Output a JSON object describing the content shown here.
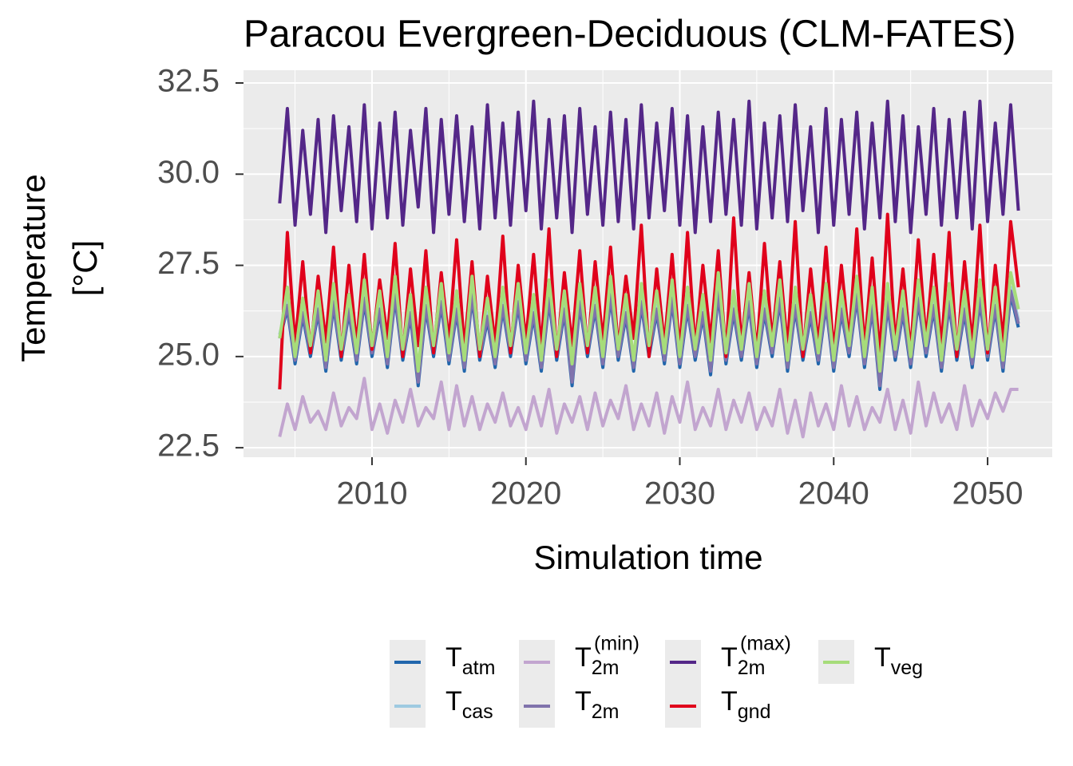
{
  "chart_data": {
    "type": "line",
    "title": "Paracou Evergreen-Deciduous (CLM-FATES)",
    "xlabel": "Simulation time",
    "ylabel": [
      "Temperature",
      "[°C]"
    ],
    "xlim": [
      2001.65,
      2054.2
    ],
    "ylim": [
      22.24,
      32.85
    ],
    "xticks": [
      2010,
      2020,
      2030,
      2040,
      2050
    ],
    "yticks": [
      {
        "value": 22.5,
        "label": "22.5"
      },
      {
        "value": 25,
        "label": "25.0"
      },
      {
        "value": 27.5,
        "label": "27.5"
      },
      {
        "value": 30,
        "label": "30.0"
      },
      {
        "value": 32.5,
        "label": "32.5"
      }
    ],
    "grid": true,
    "legend": "bottom",
    "x": [
      2004.0,
      2004.5,
      2005.0,
      2005.5,
      2006.0,
      2006.5,
      2007.0,
      2007.5,
      2008.0,
      2008.5,
      2009.0,
      2009.5,
      2010.0,
      2010.5,
      2011.0,
      2011.5,
      2012.0,
      2012.5,
      2013.0,
      2013.5,
      2014.0,
      2014.5,
      2015.0,
      2015.5,
      2016.0,
      2016.5,
      2017.0,
      2017.5,
      2018.0,
      2018.5,
      2019.0,
      2019.5,
      2020.0,
      2020.5,
      2021.0,
      2021.5,
      2022.0,
      2022.5,
      2023.0,
      2023.5,
      2024.0,
      2024.5,
      2025.0,
      2025.5,
      2026.0,
      2026.5,
      2027.0,
      2027.5,
      2028.0,
      2028.5,
      2029.0,
      2029.5,
      2030.0,
      2030.5,
      2031.0,
      2031.5,
      2032.0,
      2032.5,
      2033.0,
      2033.5,
      2034.0,
      2034.5,
      2035.0,
      2035.5,
      2036.0,
      2036.5,
      2037.0,
      2037.5,
      2038.0,
      2038.5,
      2039.0,
      2039.5,
      2040.0,
      2040.5,
      2041.0,
      2041.5,
      2042.0,
      2042.5,
      2043.0,
      2043.5,
      2044.0,
      2044.5,
      2045.0,
      2045.5,
      2046.0,
      2046.5,
      2047.0,
      2047.5,
      2048.0,
      2048.5,
      2049.0,
      2049.5,
      2050.0,
      2050.5,
      2051.0,
      2051.5,
      2052.0
    ],
    "series": [
      {
        "name": "T",
        "subscript": "atm",
        "color": "#2166ac",
        "values": [
          25.5,
          26.3,
          24.8,
          26.1,
          25.0,
          26.2,
          24.6,
          26.4,
          24.9,
          26.2,
          24.8,
          26.5,
          25.0,
          26.2,
          24.7,
          26.6,
          24.9,
          26.1,
          24.2,
          26.3,
          25.0,
          26.4,
          24.8,
          26.2,
          24.6,
          26.6,
          24.9,
          26.0,
          24.7,
          26.3,
          25.0,
          26.4,
          24.8,
          26.1,
          24.6,
          26.5,
          24.9,
          26.2,
          24.2,
          26.4,
          25.0,
          26.3,
          24.7,
          26.6,
          24.9,
          26.1,
          24.6,
          26.4,
          25.0,
          26.2,
          24.8,
          26.5,
          24.7,
          26.3,
          24.9,
          26.1,
          24.5,
          26.7,
          24.8,
          26.2,
          24.9,
          26.4,
          24.7,
          26.2,
          25.0,
          26.5,
          24.6,
          26.3,
          24.9,
          26.1,
          24.8,
          26.4,
          24.6,
          26.2,
          25.0,
          26.6,
          24.7,
          26.3,
          24.1,
          26.4,
          24.9,
          26.2,
          24.7,
          26.5,
          25.0,
          26.3,
          24.6,
          26.4,
          24.9,
          26.2,
          24.7,
          26.5,
          24.9,
          26.3,
          24.6,
          26.7,
          25.8
        ]
      },
      {
        "name": "T",
        "subscript": "cas",
        "color": "#9ecae1",
        "values": [
          25.6,
          26.5,
          25.0,
          26.3,
          25.2,
          26.4,
          24.8,
          26.6,
          25.1,
          26.4,
          25.0,
          26.7,
          25.2,
          26.4,
          24.9,
          26.8,
          25.1,
          26.3,
          24.4,
          26.5,
          25.2,
          26.6,
          25.0,
          26.4,
          24.8,
          26.8,
          25.1,
          26.2,
          24.9,
          26.5,
          25.2,
          26.6,
          25.0,
          26.3,
          24.8,
          26.7,
          25.1,
          26.4,
          24.4,
          26.6,
          25.2,
          26.5,
          24.9,
          26.8,
          25.1,
          26.3,
          24.8,
          26.6,
          25.2,
          26.4,
          25.0,
          26.7,
          24.9,
          26.5,
          25.1,
          26.3,
          24.7,
          26.9,
          25.0,
          26.4,
          25.1,
          26.6,
          24.9,
          26.4,
          25.2,
          26.7,
          24.8,
          26.5,
          25.1,
          26.3,
          25.0,
          26.6,
          24.8,
          26.4,
          25.2,
          26.8,
          24.9,
          26.5,
          24.3,
          26.6,
          25.1,
          26.4,
          24.9,
          26.7,
          25.2,
          26.5,
          24.8,
          26.6,
          25.1,
          26.4,
          24.9,
          26.7,
          25.1,
          26.5,
          24.8,
          26.9,
          26.0
        ]
      },
      {
        "name": "T",
        "subscript": "2m",
        "superscript": "(min)",
        "color": "#c2a5cf",
        "values": [
          22.8,
          23.7,
          23.0,
          23.9,
          23.2,
          23.5,
          23.0,
          24.0,
          23.1,
          23.6,
          23.3,
          24.4,
          23.0,
          23.7,
          22.9,
          23.8,
          23.2,
          24.1,
          23.1,
          23.6,
          23.3,
          24.3,
          23.0,
          24.2,
          23.1,
          23.9,
          23.0,
          23.7,
          23.2,
          24.0,
          23.1,
          23.6,
          23.0,
          23.9,
          23.1,
          24.1,
          22.9,
          23.7,
          23.2,
          23.9,
          23.0,
          24.0,
          23.1,
          23.8,
          23.3,
          24.2,
          23.0,
          23.7,
          23.1,
          24.0,
          22.9,
          23.9,
          23.2,
          24.3,
          23.0,
          23.6,
          23.1,
          24.1,
          23.0,
          23.8,
          23.2,
          24.0,
          23.0,
          23.6,
          23.1,
          24.1,
          22.9,
          23.8,
          22.8,
          24.0,
          23.1,
          23.7,
          23.0,
          24.2,
          23.1,
          23.9,
          23.0,
          23.6,
          23.2,
          24.1,
          23.0,
          23.8,
          22.9,
          24.3,
          23.1,
          24.0,
          23.2,
          23.7,
          23.0,
          24.2,
          23.1,
          23.8,
          23.3,
          24.0,
          23.5,
          24.1,
          24.1
        ]
      },
      {
        "name": "T",
        "subscript": "2m",
        "color": "#8073ac",
        "values": [
          25.5,
          26.4,
          24.9,
          26.2,
          25.1,
          26.3,
          24.7,
          26.5,
          25.0,
          26.3,
          24.9,
          26.6,
          25.1,
          26.3,
          24.8,
          26.7,
          25.0,
          26.2,
          24.3,
          26.4,
          25.1,
          26.5,
          24.9,
          26.3,
          24.7,
          26.7,
          25.0,
          26.1,
          24.8,
          26.4,
          25.1,
          26.5,
          24.9,
          26.2,
          24.7,
          26.6,
          25.0,
          26.3,
          24.3,
          26.5,
          25.1,
          26.4,
          24.8,
          26.7,
          25.0,
          26.2,
          24.7,
          26.5,
          25.1,
          26.3,
          24.9,
          26.6,
          24.8,
          26.4,
          25.0,
          26.2,
          24.6,
          26.8,
          24.9,
          26.3,
          25.0,
          26.5,
          24.8,
          26.3,
          25.1,
          26.6,
          24.7,
          26.4,
          25.0,
          26.2,
          24.9,
          26.5,
          24.7,
          26.3,
          25.1,
          26.7,
          24.8,
          26.4,
          24.2,
          26.5,
          25.0,
          26.3,
          24.8,
          26.6,
          25.1,
          26.4,
          24.7,
          26.5,
          25.0,
          26.3,
          24.8,
          26.6,
          25.0,
          26.4,
          24.7,
          26.8,
          25.9
        ]
      },
      {
        "name": "T",
        "subscript": "2m",
        "superscript": "(max)",
        "color": "#542788",
        "values": [
          29.2,
          31.8,
          28.6,
          31.2,
          28.9,
          31.5,
          28.4,
          31.6,
          29.0,
          31.3,
          28.7,
          31.9,
          28.5,
          31.4,
          28.8,
          31.7,
          28.6,
          31.2,
          29.1,
          31.8,
          28.4,
          31.5,
          28.9,
          31.6,
          28.7,
          31.3,
          28.5,
          31.9,
          28.8,
          31.4,
          28.6,
          31.7,
          29.0,
          32.0,
          28.5,
          31.5,
          28.8,
          31.6,
          28.4,
          31.8,
          28.9,
          31.3,
          28.6,
          31.7,
          28.7,
          31.5,
          28.5,
          31.9,
          28.8,
          31.4,
          29.0,
          31.8,
          28.6,
          31.6,
          28.4,
          31.3,
          28.7,
          31.7,
          28.9,
          31.5,
          28.6,
          32.0,
          28.5,
          31.4,
          28.8,
          31.6,
          28.7,
          31.9,
          29.0,
          31.3,
          28.4,
          31.8,
          28.6,
          31.5,
          28.9,
          31.7,
          28.5,
          31.4,
          28.8,
          32.0,
          28.7,
          31.6,
          28.4,
          31.3,
          28.9,
          31.8,
          28.6,
          31.5,
          28.8,
          31.7,
          28.5,
          32.0,
          28.7,
          31.4,
          28.9,
          31.9,
          29.0
        ]
      },
      {
        "name": "T",
        "subscript": "gnd",
        "color": "#e0001b",
        "values": [
          24.1,
          28.4,
          25.3,
          27.6,
          25.1,
          27.2,
          25.4,
          28.0,
          25.0,
          27.5,
          25.3,
          27.8,
          25.2,
          27.1,
          25.5,
          28.1,
          25.0,
          27.4,
          25.3,
          27.9,
          25.1,
          27.3,
          25.4,
          28.2,
          25.2,
          27.6,
          25.0,
          27.2,
          25.3,
          28.3,
          25.1,
          27.5,
          25.4,
          27.8,
          25.2,
          28.5,
          25.0,
          27.3,
          25.3,
          27.9,
          25.1,
          27.6,
          25.4,
          28.0,
          25.2,
          27.2,
          25.5,
          28.6,
          25.0,
          27.4,
          25.3,
          27.8,
          25.1,
          28.4,
          25.2,
          27.5,
          25.4,
          27.9,
          25.0,
          28.8,
          25.3,
          27.3,
          25.1,
          28.1,
          25.4,
          27.6,
          25.2,
          28.7,
          25.0,
          27.4,
          25.3,
          28.0,
          25.1,
          27.5,
          25.4,
          28.5,
          25.2,
          27.7,
          25.0,
          28.9,
          25.3,
          27.4,
          25.1,
          28.2,
          25.4,
          27.8,
          25.2,
          28.4,
          25.0,
          27.6,
          25.3,
          28.6,
          25.1,
          27.5,
          25.4,
          28.7,
          26.9
        ]
      },
      {
        "name": "T",
        "subscript": "veg",
        "color": "#a6dc7a",
        "values": [
          25.5,
          26.9,
          25.0,
          26.6,
          25.3,
          26.8,
          24.9,
          27.0,
          25.2,
          26.7,
          25.1,
          27.1,
          25.3,
          26.8,
          25.0,
          27.2,
          25.2,
          26.7,
          24.6,
          26.9,
          25.3,
          27.0,
          25.1,
          26.8,
          24.9,
          27.2,
          25.2,
          26.6,
          25.0,
          26.9,
          25.3,
          27.0,
          25.1,
          26.7,
          24.9,
          27.1,
          25.2,
          26.8,
          24.8,
          27.0,
          25.3,
          26.9,
          25.0,
          27.2,
          25.2,
          26.7,
          24.9,
          27.0,
          25.3,
          26.8,
          25.1,
          27.1,
          25.0,
          26.9,
          25.2,
          26.7,
          24.9,
          27.3,
          25.1,
          26.8,
          25.2,
          27.0,
          25.0,
          26.8,
          25.3,
          27.1,
          24.9,
          26.9,
          25.2,
          26.7,
          25.1,
          27.0,
          24.9,
          26.8,
          25.3,
          27.2,
          25.0,
          26.9,
          24.6,
          27.0,
          25.2,
          26.8,
          25.0,
          27.1,
          25.3,
          26.9,
          24.9,
          27.0,
          25.2,
          26.8,
          25.0,
          27.1,
          25.2,
          26.9,
          24.9,
          27.3,
          26.3
        ]
      }
    ]
  }
}
